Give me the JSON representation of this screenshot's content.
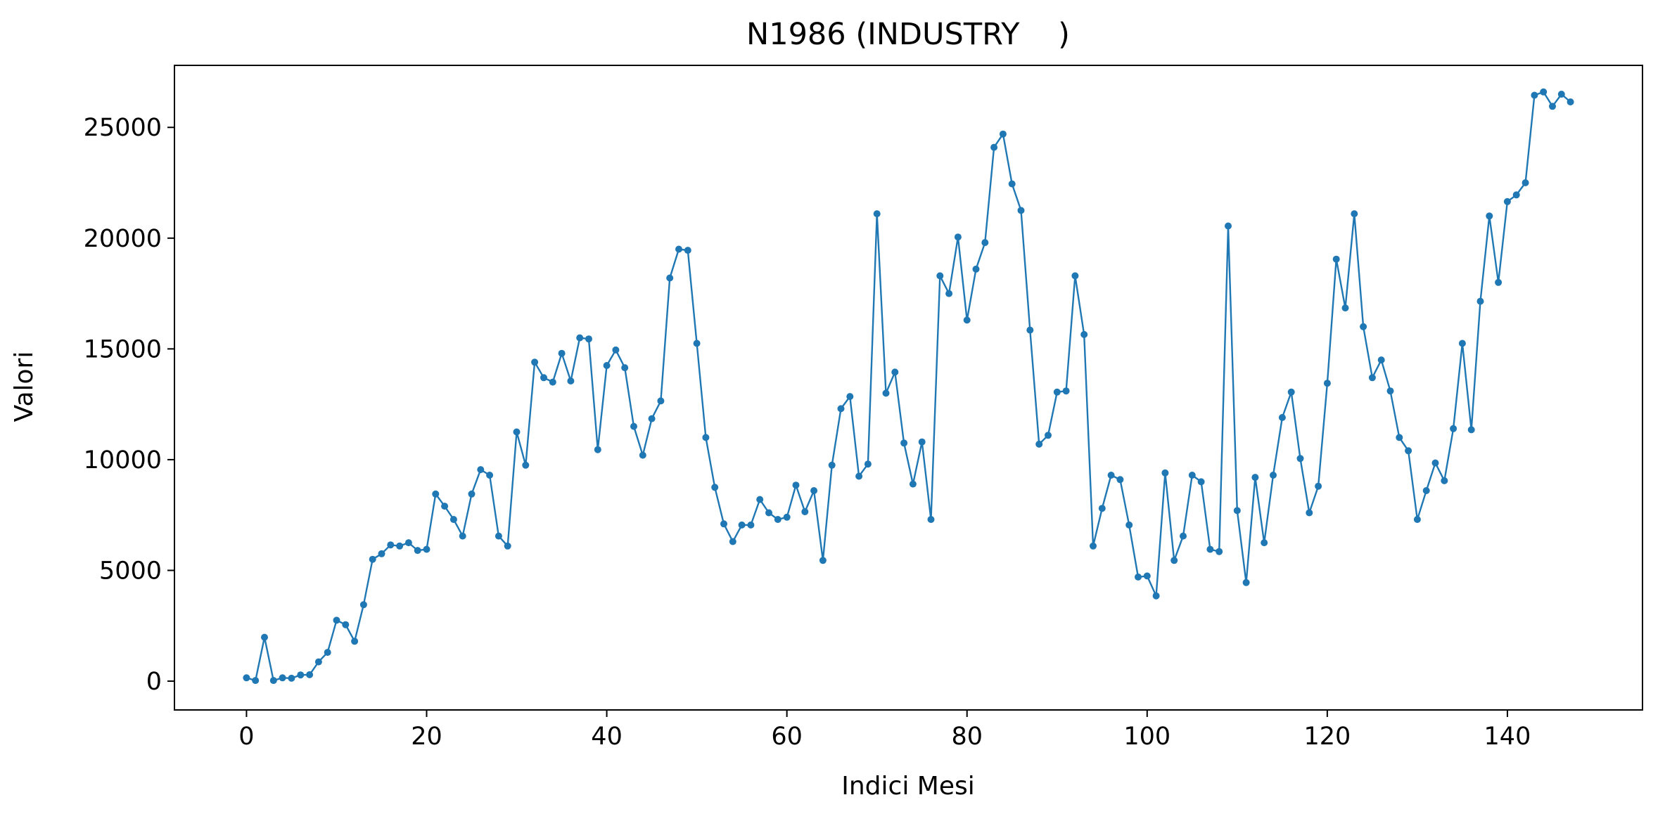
{
  "chart_data": {
    "type": "line",
    "title": "N1986 (INDUSTRY    )",
    "xlabel": "Indici Mesi",
    "ylabel": "Valori",
    "xlim": [
      -8,
      155
    ],
    "ylim": [
      -1300,
      27800
    ],
    "xticks": [
      0,
      20,
      40,
      60,
      80,
      100,
      120,
      140
    ],
    "yticks": [
      0,
      5000,
      10000,
      15000,
      20000,
      25000
    ],
    "grid": false,
    "legend": "none",
    "series": [
      {
        "color": "#1f77b4",
        "marker": "circle",
        "x": [
          0,
          1,
          2,
          3,
          4,
          5,
          6,
          7,
          8,
          9,
          10,
          11,
          12,
          13,
          14,
          15,
          16,
          17,
          18,
          19,
          20,
          21,
          22,
          23,
          24,
          25,
          26,
          27,
          28,
          29,
          30,
          31,
          32,
          33,
          34,
          35,
          36,
          37,
          38,
          39,
          40,
          41,
          42,
          43,
          44,
          45,
          46,
          47,
          48,
          49,
          50,
          51,
          52,
          53,
          54,
          55,
          56,
          57,
          58,
          59,
          60,
          61,
          62,
          63,
          64,
          65,
          66,
          67,
          68,
          69,
          70,
          71,
          72,
          73,
          74,
          75,
          76,
          77,
          78,
          79,
          80,
          81,
          82,
          83,
          84,
          85,
          86,
          87,
          88,
          89,
          90,
          91,
          92,
          93,
          94,
          95,
          96,
          97,
          98,
          99,
          100,
          101,
          102,
          103,
          104,
          105,
          106,
          107,
          108,
          109,
          110,
          111,
          112,
          113,
          114,
          115,
          116,
          117,
          118,
          119,
          120,
          121,
          122,
          123,
          124,
          125,
          126,
          127,
          128,
          129,
          130,
          131,
          132,
          133,
          134,
          135,
          136,
          137,
          138,
          139,
          140,
          141,
          142,
          143,
          144,
          145,
          146,
          147
        ],
        "y": [
          150,
          30,
          1980,
          30,
          150,
          130,
          280,
          290,
          870,
          1300,
          2750,
          2550,
          1800,
          3450,
          5500,
          5750,
          6150,
          6100,
          6250,
          5900,
          5950,
          8450,
          7900,
          7300,
          6550,
          8450,
          9550,
          9300,
          6550,
          6100,
          11250,
          9750,
          14400,
          13700,
          13500,
          14800,
          13550,
          15500,
          15450,
          10450,
          14250,
          14950,
          14150,
          11500,
          10200,
          11850,
          12650,
          18200,
          19500,
          19450,
          15250,
          11000,
          8750,
          7100,
          6300,
          7050,
          7050,
          8200,
          7600,
          7300,
          7400,
          8850,
          7650,
          8600,
          5450,
          9750,
          12300,
          12850,
          9250,
          9800,
          21100,
          13000,
          13950,
          10750,
          8900,
          10800,
          7300,
          18300,
          17500,
          20050,
          16300,
          18600,
          19800,
          24100,
          24700,
          22450,
          21250,
          15850,
          10700,
          11100,
          13050,
          13100,
          18300,
          15650,
          6100,
          7800,
          9300,
          9100,
          7050,
          4700,
          4750,
          3850,
          9400,
          5450,
          6550,
          9300,
          9000,
          5950,
          5850,
          20550,
          7700,
          4450,
          9200,
          6250,
          9300,
          11900,
          13050,
          10050,
          7600,
          8800,
          13450,
          19050,
          16850,
          21100,
          16000,
          13700,
          14500,
          13100,
          11000,
          10400,
          7300,
          8600,
          9850,
          9050,
          11400,
          15250,
          11350,
          17150,
          21000,
          18000,
          21650,
          21950,
          22500,
          26450,
          26600,
          25950,
          26500,
          26150
        ]
      }
    ]
  }
}
